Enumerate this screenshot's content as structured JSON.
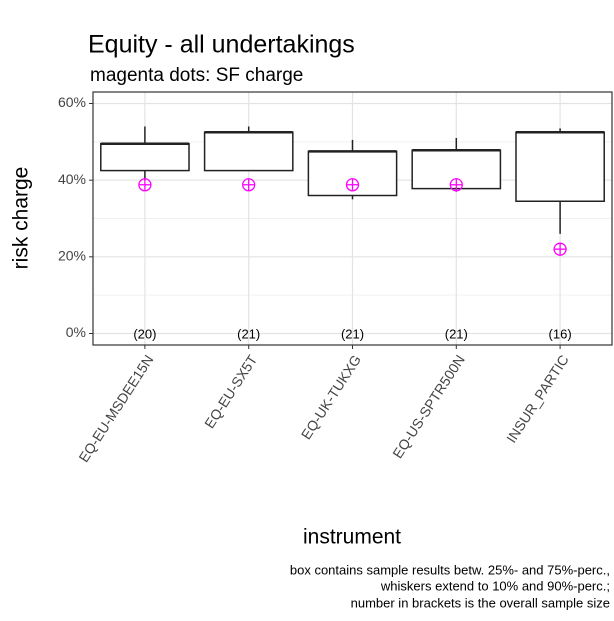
{
  "chart_data": {
    "type": "box",
    "title": "Equity - all undertakings",
    "subtitle": "magenta dots: SF charge",
    "y_label": "risk charge",
    "x_label": "instrument",
    "footnote": [
      "box contains sample results betw. 25%- and 75%-perc.,",
      "whiskers extend to 10% and 90%-perc.;",
      "number in brackets is the overall sample size"
    ],
    "categories": [
      "EQ-EU-MSDEE15N",
      "EQ-EU-SX5T",
      "EQ-UK-TUKXG",
      "EQ-US-SPTR500N",
      "INSUR_PARTIC"
    ],
    "whisker_low": [
      40,
      42.5,
      35,
      37,
      26
    ],
    "q1": [
      42.5,
      42.5,
      36,
      37.8,
      34.5
    ],
    "median": [
      49.5,
      52.5,
      47.5,
      47.8,
      52.5
    ],
    "q3": [
      49.5,
      52.5,
      47.5,
      47.8,
      52.5
    ],
    "whisker_high": [
      54,
      54,
      50.5,
      51,
      53.5
    ],
    "sf_charge": [
      38.8,
      38.8,
      38.8,
      38.8,
      22
    ],
    "sf_color": "#ff00ff",
    "box_color": "#222222",
    "sample_size_labels": [
      "(20)",
      "(21)",
      "(21)",
      "(21)",
      "(16)"
    ],
    "ylim": [
      -3,
      63
    ],
    "yticks": [
      {
        "value": 0,
        "label": "0%"
      },
      {
        "value": 20,
        "label": "20%"
      },
      {
        "value": 40,
        "label": "40%"
      },
      {
        "value": 60,
        "label": "60%"
      }
    ],
    "minor_yticks": [
      10,
      30,
      50
    ],
    "grid": true
  }
}
